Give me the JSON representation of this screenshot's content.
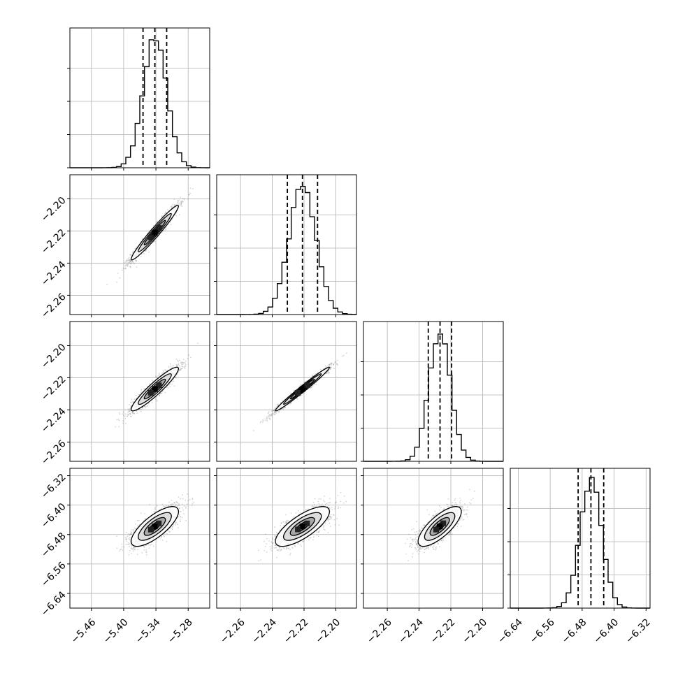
{
  "chart_data": {
    "type": "corner",
    "parameters": 4,
    "x_axes": [
      {
        "range": [
          -5.5,
          -5.24
        ],
        "ticks": [
          -5.46,
          -5.4,
          -5.34,
          -5.28
        ],
        "tick_labels": [
          "−5.46",
          "−5.40",
          "−5.34",
          "−5.28"
        ]
      },
      {
        "range": [
          -2.275,
          -2.187
        ],
        "ticks": [
          -2.26,
          -2.24,
          -2.22,
          -2.2
        ],
        "tick_labels": [
          "−2.26",
          "−2.24",
          "−2.22",
          "−2.20"
        ]
      },
      {
        "range": [
          -2.275,
          -2.187
        ],
        "ticks": [
          -2.26,
          -2.24,
          -2.22,
          -2.2
        ],
        "tick_labels": [
          "−2.26",
          "−2.24",
          "−2.22",
          "−2.20"
        ]
      },
      {
        "range": [
          -6.66,
          -6.31
        ],
        "ticks": [
          -6.64,
          -6.56,
          -6.48,
          -6.4,
          -6.32
        ],
        "tick_labels": [
          "−6.64",
          "−6.56",
          "−6.48",
          "−6.40",
          "−6.32"
        ]
      }
    ],
    "y_axes": [
      null,
      {
        "range": [
          -2.272,
          -2.185
        ],
        "ticks": [
          -2.26,
          -2.24,
          -2.22,
          -2.2
        ],
        "tick_labels": [
          "−2.26",
          "−2.24",
          "−2.22",
          "−2.20"
        ]
      },
      {
        "range": [
          -2.272,
          -2.185
        ],
        "ticks": [
          -2.26,
          -2.24,
          -2.22,
          -2.2
        ],
        "tick_labels": [
          "−2.26",
          "−2.24",
          "−2.22",
          "−2.20"
        ]
      },
      {
        "range": [
          -6.68,
          -6.3
        ],
        "ticks": [
          -6.64,
          -6.56,
          -6.48,
          -6.4,
          -6.32
        ],
        "tick_labels": [
          "−6.64",
          "−6.56",
          "−6.48",
          "−6.40",
          "−6.32"
        ]
      }
    ],
    "marginals": [
      {
        "param": 0,
        "center": -5.342,
        "sd": 0.022,
        "quantiles": [
          -5.364,
          -5.342,
          -5.32
        ]
      },
      {
        "param": 1,
        "center": -2.221,
        "sd": 0.0085,
        "quantiles": [
          -2.2305,
          -2.221,
          -2.2115
        ]
      },
      {
        "param": 2,
        "center": -2.227,
        "sd": 0.0068,
        "quantiles": [
          -2.2342,
          -2.2268,
          -2.2195
        ]
      },
      {
        "param": 3,
        "center": -6.458,
        "sd": 0.027,
        "quantiles": [
          -6.49,
          -6.458,
          -6.426
        ]
      }
    ],
    "pairs": [
      {
        "x_param": 0,
        "y_param": 1,
        "correlation": 0.97
      },
      {
        "x_param": 0,
        "y_param": 2,
        "correlation": 0.93
      },
      {
        "x_param": 1,
        "y_param": 2,
        "correlation": 0.985
      },
      {
        "x_param": 0,
        "y_param": 3,
        "correlation": 0.75
      },
      {
        "x_param": 1,
        "y_param": 3,
        "correlation": 0.75
      },
      {
        "x_param": 2,
        "y_param": 3,
        "correlation": 0.75
      }
    ],
    "grid": true,
    "quantile_lines": "dashed",
    "colors": {
      "line": "#000000",
      "grid": "#b0b0b0",
      "points": "#888888"
    }
  }
}
